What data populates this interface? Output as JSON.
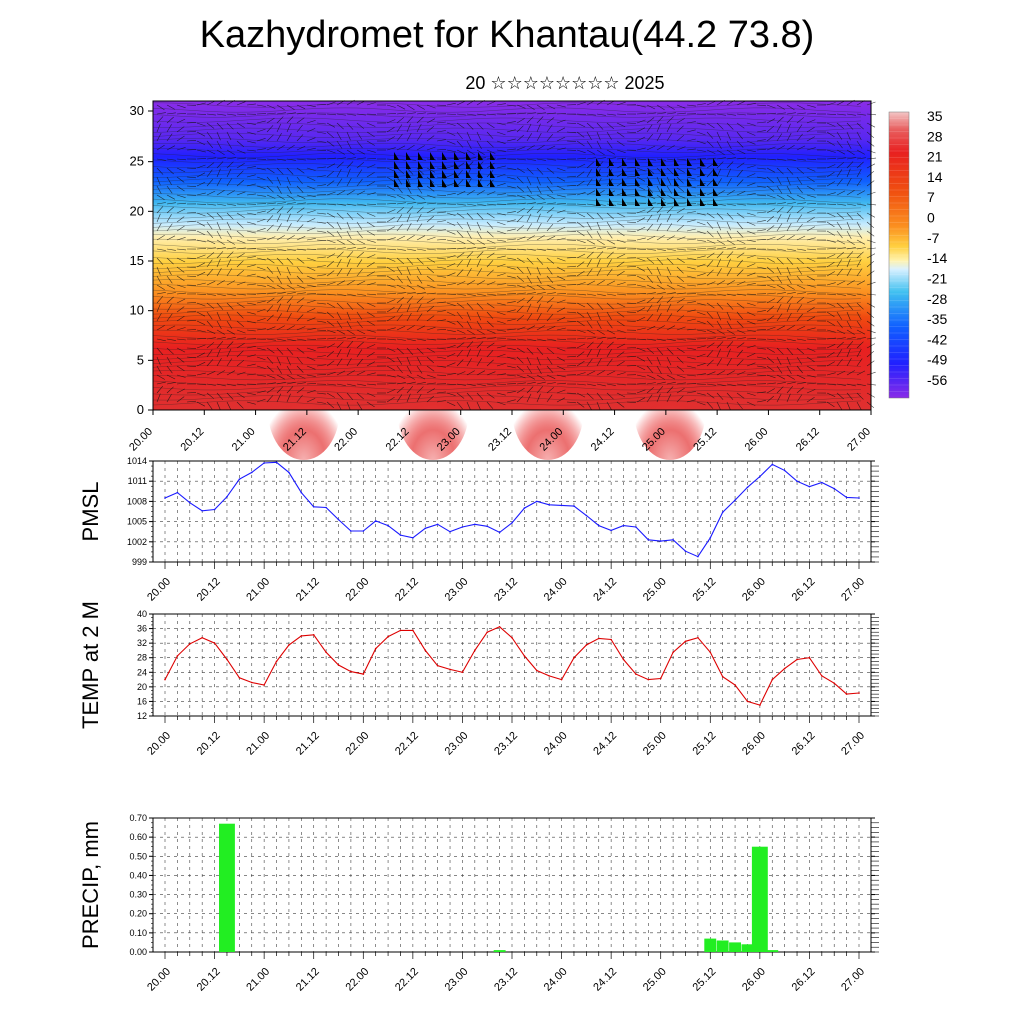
{
  "title": "Kazhydromet for Khantau(44.2 73.8)",
  "subtitle": "20 ☆☆☆☆☆☆☆☆ 2025",
  "time_labels": [
    "20.00",
    "20.12",
    "21.00",
    "21.12",
    "22.00",
    "22.12",
    "23.00",
    "23.12",
    "24.00",
    "24.12",
    "25.00",
    "25.12",
    "26.00",
    "26.12",
    "27.00"
  ],
  "chart_data": [
    {
      "type": "heatmap",
      "title": "",
      "ylabel": "",
      "ylim": [
        0,
        30
      ],
      "y_ticks": [
        "0",
        "5",
        "10",
        "15",
        "20",
        "25",
        "30"
      ],
      "x_ticks": [
        "20.00",
        "20.12",
        "21.00",
        "21.12",
        "22.00",
        "22.12",
        "23.00",
        "23.12",
        "24.00",
        "24.12",
        "25.00",
        "25.12",
        "26.00",
        "26.12",
        "27.00"
      ],
      "colorbar_labels": [
        "35",
        "28",
        "21",
        "14",
        "7",
        "0",
        "-7",
        "-14",
        "-21",
        "-28",
        "-35",
        "-42",
        "-49",
        "-56"
      ],
      "value_range": [
        -63,
        42
      ],
      "overlay": "wind barbs"
    },
    {
      "type": "line",
      "ylabel": "PMSL",
      "ylim": [
        999,
        1014
      ],
      "y_ticks": [
        "999",
        "1002",
        "1005",
        "1008",
        "1011",
        "1014"
      ],
      "x_ticks": [
        "20.00",
        "20.12",
        "21.00",
        "21.12",
        "22.00",
        "22.12",
        "23.00",
        "23.12",
        "24.00",
        "24.12",
        "25.00",
        "25.12",
        "26.00",
        "26.12",
        "27.00"
      ],
      "x": [
        0,
        3,
        6,
        9,
        12,
        15,
        18,
        21,
        24,
        27,
        30,
        33,
        36,
        39,
        42,
        45,
        48,
        51,
        54,
        57,
        60,
        63,
        66,
        69,
        72,
        75,
        78,
        81,
        84,
        87,
        90,
        93,
        96,
        99,
        102,
        105,
        108,
        111,
        114,
        117,
        120,
        123,
        126,
        129,
        132,
        135,
        138,
        141,
        144,
        147,
        150,
        153,
        156,
        159,
        162,
        165,
        168
      ],
      "values": [
        1008.5,
        1009.3,
        1007.8,
        1006.6,
        1006.8,
        1008.7,
        1011.3,
        1012.3,
        1013.7,
        1013.8,
        1012.3,
        1009.3,
        1007.2,
        1007.1,
        1005.3,
        1003.6,
        1003.6,
        1005.1,
        1004.4,
        1003.0,
        1002.6,
        1004.0,
        1004.6,
        1003.5,
        1004.2,
        1004.6,
        1004.3,
        1003.4,
        1004.8,
        1007.0,
        1008.0,
        1007.5,
        1007.4,
        1007.3,
        1005.9,
        1004.4,
        1003.7,
        1004.4,
        1004.2,
        1002.3,
        1002.1,
        1002.3,
        1000.6,
        999.8,
        1002.6,
        1006.4,
        1008.2,
        1010.1,
        1011.7,
        1013.5,
        1012.6,
        1011.0,
        1010.2,
        1010.8,
        1009.9,
        1008.6,
        1008.5
      ],
      "color": "#1a1aff"
    },
    {
      "type": "line",
      "ylabel": "TEMP at 2 M",
      "ylim": [
        12,
        40
      ],
      "y_ticks": [
        "12",
        "16",
        "20",
        "24",
        "28",
        "32",
        "36",
        "40"
      ],
      "x_ticks": [
        "20.00",
        "20.12",
        "21.00",
        "21.12",
        "22.00",
        "22.12",
        "23.00",
        "23.12",
        "24.00",
        "24.12",
        "25.00",
        "25.12",
        "26.00",
        "26.12",
        "27.00"
      ],
      "x": [
        0,
        3,
        6,
        9,
        12,
        15,
        18,
        21,
        24,
        27,
        30,
        33,
        36,
        39,
        42,
        45,
        48,
        51,
        54,
        57,
        60,
        63,
        66,
        69,
        72,
        75,
        78,
        81,
        84,
        87,
        90,
        93,
        96,
        99,
        102,
        105,
        108,
        111,
        114,
        117,
        120,
        123,
        126,
        129,
        132,
        135,
        138,
        141,
        144,
        147,
        150,
        153,
        156,
        159,
        162,
        165,
        168
      ],
      "values": [
        22.0,
        28.5,
        31.8,
        33.5,
        32.0,
        27.5,
        22.5,
        21.2,
        20.5,
        27.0,
        31.5,
        34.0,
        34.3,
        29.5,
        26.0,
        24.2,
        23.5,
        30.5,
        33.8,
        35.5,
        35.5,
        30.0,
        25.8,
        24.8,
        24.0,
        30.0,
        35.0,
        36.5,
        33.5,
        28.5,
        24.5,
        23.0,
        22.0,
        28.0,
        31.5,
        33.3,
        33.0,
        27.5,
        23.5,
        22.0,
        22.3,
        29.5,
        32.5,
        33.5,
        29.5,
        22.8,
        20.5,
        16.0,
        15.0,
        22.0,
        25.0,
        27.5,
        28.0,
        23.0,
        21.0,
        18.0,
        18.3
      ],
      "color": "#dd0000"
    },
    {
      "type": "bar",
      "ylabel": "PRECIP, mm",
      "ylim": [
        0,
        0.7
      ],
      "y_ticks": [
        "0.00",
        "0.10",
        "0.20",
        "0.30",
        "0.40",
        "0.50",
        "0.60",
        "0.70"
      ],
      "x_ticks": [
        "20.00",
        "20.12",
        "21.00",
        "21.12",
        "22.00",
        "22.12",
        "23.00",
        "23.12",
        "24.00",
        "24.12",
        "25.00",
        "25.12",
        "26.00",
        "26.12",
        "27.00"
      ],
      "x": [
        15,
        81,
        132,
        135,
        138,
        141,
        144,
        147
      ],
      "values": [
        0.67,
        0.01,
        0.07,
        0.06,
        0.05,
        0.04,
        0.55,
        0.01
      ],
      "color": "#22ee22"
    }
  ]
}
